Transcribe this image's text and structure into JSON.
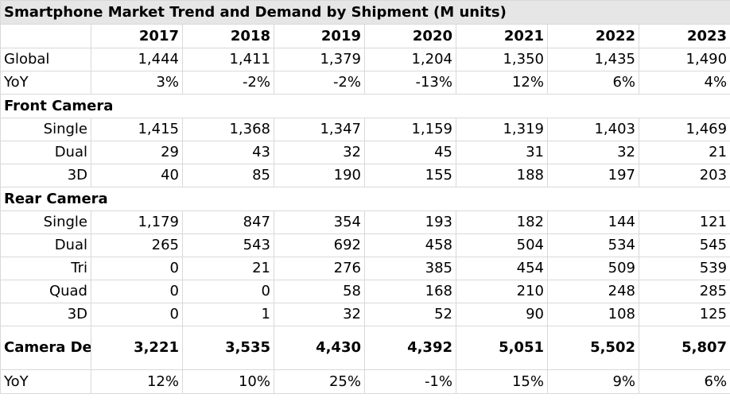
{
  "chart_data": {
    "type": "table",
    "title": "Smartphone Market Trend and Demand by Shipment (M units)",
    "columns": [
      "2017",
      "2018",
      "2019",
      "2020",
      "2021",
      "2022",
      "2023"
    ],
    "rows": [
      {
        "label": "Global",
        "values": [
          "1,444",
          "1,411",
          "1,379",
          "1,204",
          "1,350",
          "1,435",
          "1,490"
        ]
      },
      {
        "label": "YoY",
        "values": [
          "3%",
          "-2%",
          "-2%",
          "-13%",
          "12%",
          "6%",
          "4%"
        ]
      },
      {
        "section": "Front Camera"
      },
      {
        "label": "Single",
        "indent": true,
        "values": [
          "1,415",
          "1,368",
          "1,347",
          "1,159",
          "1,319",
          "1,403",
          "1,469"
        ]
      },
      {
        "label": "Dual",
        "indent": true,
        "values": [
          "29",
          "43",
          "32",
          "45",
          "31",
          "32",
          "21"
        ]
      },
      {
        "label": "3D",
        "indent": true,
        "values": [
          "40",
          "85",
          "190",
          "155",
          "188",
          "197",
          "203"
        ]
      },
      {
        "section": "Rear Camera"
      },
      {
        "label": "Single",
        "indent": true,
        "values": [
          "1,179",
          "847",
          "354",
          "193",
          "182",
          "144",
          "121"
        ]
      },
      {
        "label": "Dual",
        "indent": true,
        "values": [
          "265",
          "543",
          "692",
          "458",
          "504",
          "534",
          "545"
        ]
      },
      {
        "label": "Tri",
        "indent": true,
        "values": [
          "0",
          "21",
          "276",
          "385",
          "454",
          "509",
          "539"
        ]
      },
      {
        "label": "Quad",
        "indent": true,
        "values": [
          "0",
          "0",
          "58",
          "168",
          "210",
          "248",
          "285"
        ]
      },
      {
        "label": "3D",
        "indent": true,
        "values": [
          "0",
          "1",
          "32",
          "52",
          "90",
          "108",
          "125"
        ]
      },
      {
        "label": "Camera Demand",
        "bold": true,
        "values": [
          "3,221",
          "3,535",
          "4,430",
          "4,392",
          "5,051",
          "5,502",
          "5,807"
        ]
      },
      {
        "label": "YoY",
        "values": [
          "12%",
          "10%",
          "25%",
          "-1%",
          "15%",
          "9%",
          "6%"
        ]
      }
    ]
  }
}
